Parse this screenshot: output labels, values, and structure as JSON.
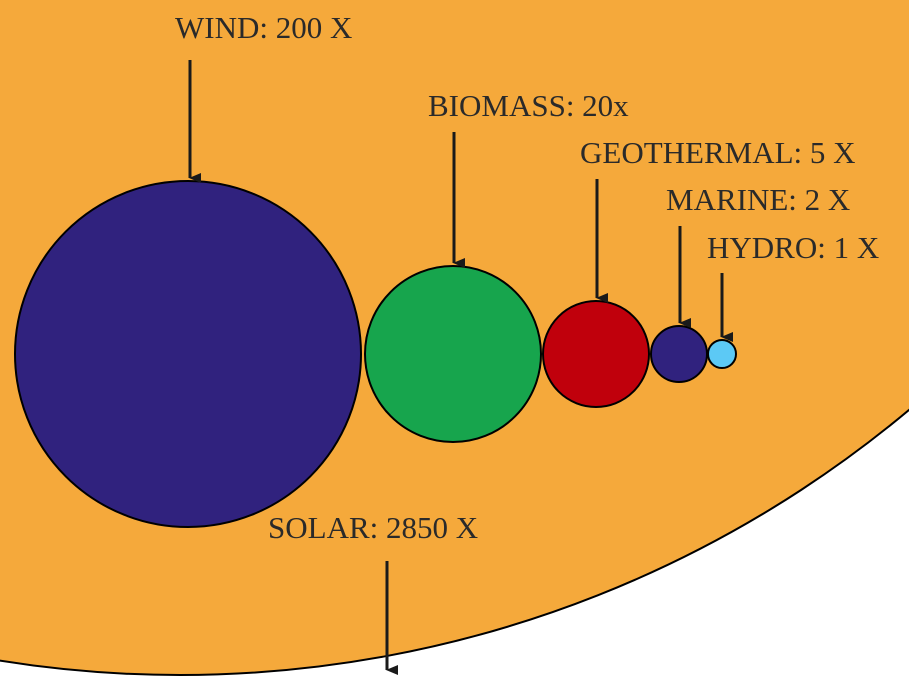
{
  "background_color": "#F5A93B",
  "arrow_color": "#1a1a1a",
  "labels": {
    "wind": "WIND: 200 X",
    "biomass": "BIOMASS: 20x",
    "geothermal": "GEOTHERMAL: 5 X",
    "marine": "MARINE: 2 X",
    "hydro": "HYDRO: 1 X",
    "solar": "SOLAR: 2850 X"
  },
  "circles": [
    {
      "key": "wind",
      "color": "#30227E"
    },
    {
      "key": "biomass",
      "color": "#17A54D"
    },
    {
      "key": "geothermal",
      "color": "#C0000C"
    },
    {
      "key": "marine",
      "color": "#30227E"
    },
    {
      "key": "hydro",
      "color": "#5CC9F5"
    },
    {
      "key": "solar",
      "color": "#F5A93B"
    }
  ]
}
